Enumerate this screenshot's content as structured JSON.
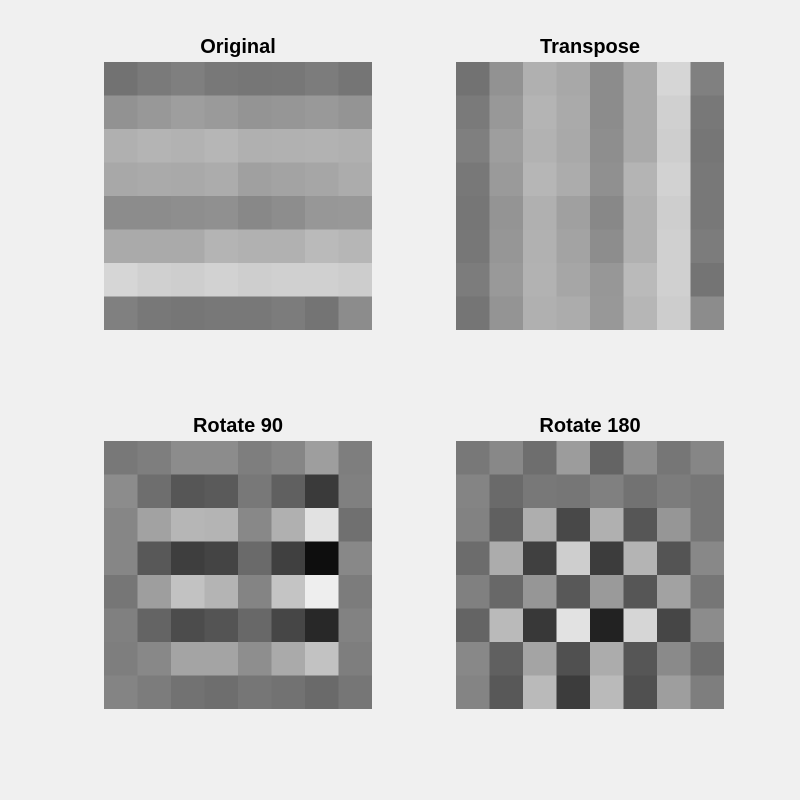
{
  "chart_data": [
    {
      "type": "heatmap",
      "title": "Original",
      "colormap": "gray",
      "rows": 8,
      "cols": 8,
      "values": [
        [
          114,
          122,
          127,
          120,
          118,
          119,
          124,
          117
        ],
        [
          146,
          152,
          158,
          154,
          148,
          150,
          153,
          148
        ],
        [
          176,
          180,
          178,
          182,
          176,
          177,
          178,
          176
        ],
        [
          168,
          170,
          169,
          172,
          160,
          163,
          166,
          172
        ],
        [
          140,
          140,
          142,
          144,
          136,
          141,
          151,
          152
        ],
        [
          170,
          170,
          170,
          180,
          177,
          177,
          186,
          182
        ],
        [
          214,
          208,
          206,
          210,
          206,
          208,
          208,
          205
        ],
        [
          128,
          120,
          118,
          120,
          120,
          124,
          116,
          140
        ]
      ]
    },
    {
      "type": "heatmap",
      "title": "Transpose",
      "colormap": "gray",
      "rows": 8,
      "cols": 8,
      "values": [
        [
          114,
          146,
          176,
          168,
          140,
          170,
          214,
          128
        ],
        [
          122,
          152,
          180,
          170,
          140,
          170,
          208,
          120
        ],
        [
          127,
          158,
          178,
          169,
          142,
          170,
          206,
          118
        ],
        [
          120,
          154,
          182,
          172,
          144,
          180,
          210,
          120
        ],
        [
          118,
          148,
          176,
          160,
          136,
          177,
          206,
          120
        ],
        [
          119,
          150,
          177,
          163,
          141,
          177,
          208,
          124
        ],
        [
          124,
          153,
          178,
          166,
          151,
          186,
          208,
          116
        ],
        [
          117,
          148,
          176,
          172,
          152,
          182,
          205,
          140
        ]
      ]
    },
    {
      "type": "heatmap",
      "title": "Rotate 90",
      "colormap": "gray",
      "rows": 8,
      "cols": 8,
      "values": [
        [
          120,
          126,
          140,
          140,
          126,
          134,
          158,
          126
        ],
        [
          140,
          110,
          86,
          90,
          120,
          96,
          58,
          128
        ],
        [
          134,
          162,
          182,
          180,
          136,
          176,
          226,
          112
        ],
        [
          134,
          88,
          62,
          68,
          106,
          64,
          14,
          136
        ],
        [
          118,
          158,
          194,
          180,
          132,
          196,
          238,
          124
        ],
        [
          128,
          100,
          76,
          84,
          104,
          70,
          40,
          130
        ],
        [
          126,
          136,
          164,
          164,
          142,
          170,
          194,
          126
        ],
        [
          132,
          124,
          114,
          110,
          118,
          114,
          106,
          118
        ]
      ]
    },
    {
      "type": "heatmap",
      "title": "Rotate 180",
      "colormap": "gray",
      "rows": 8,
      "cols": 8,
      "values": [
        [
          120,
          136,
          110,
          156,
          100,
          142,
          118,
          134
        ],
        [
          132,
          106,
          120,
          118,
          128,
          114,
          124,
          118
        ],
        [
          130,
          96,
          174,
          72,
          176,
          86,
          150,
          118
        ],
        [
          108,
          172,
          64,
          206,
          60,
          180,
          84,
          136
        ],
        [
          128,
          104,
          150,
          88,
          154,
          86,
          162,
          118
        ],
        [
          100,
          186,
          56,
          226,
          34,
          214,
          70,
          140
        ],
        [
          136,
          96,
          164,
          80,
          172,
          86,
          138,
          110
        ],
        [
          132,
          88,
          186,
          60,
          186,
          80,
          158,
          126
        ]
      ]
    }
  ]
}
